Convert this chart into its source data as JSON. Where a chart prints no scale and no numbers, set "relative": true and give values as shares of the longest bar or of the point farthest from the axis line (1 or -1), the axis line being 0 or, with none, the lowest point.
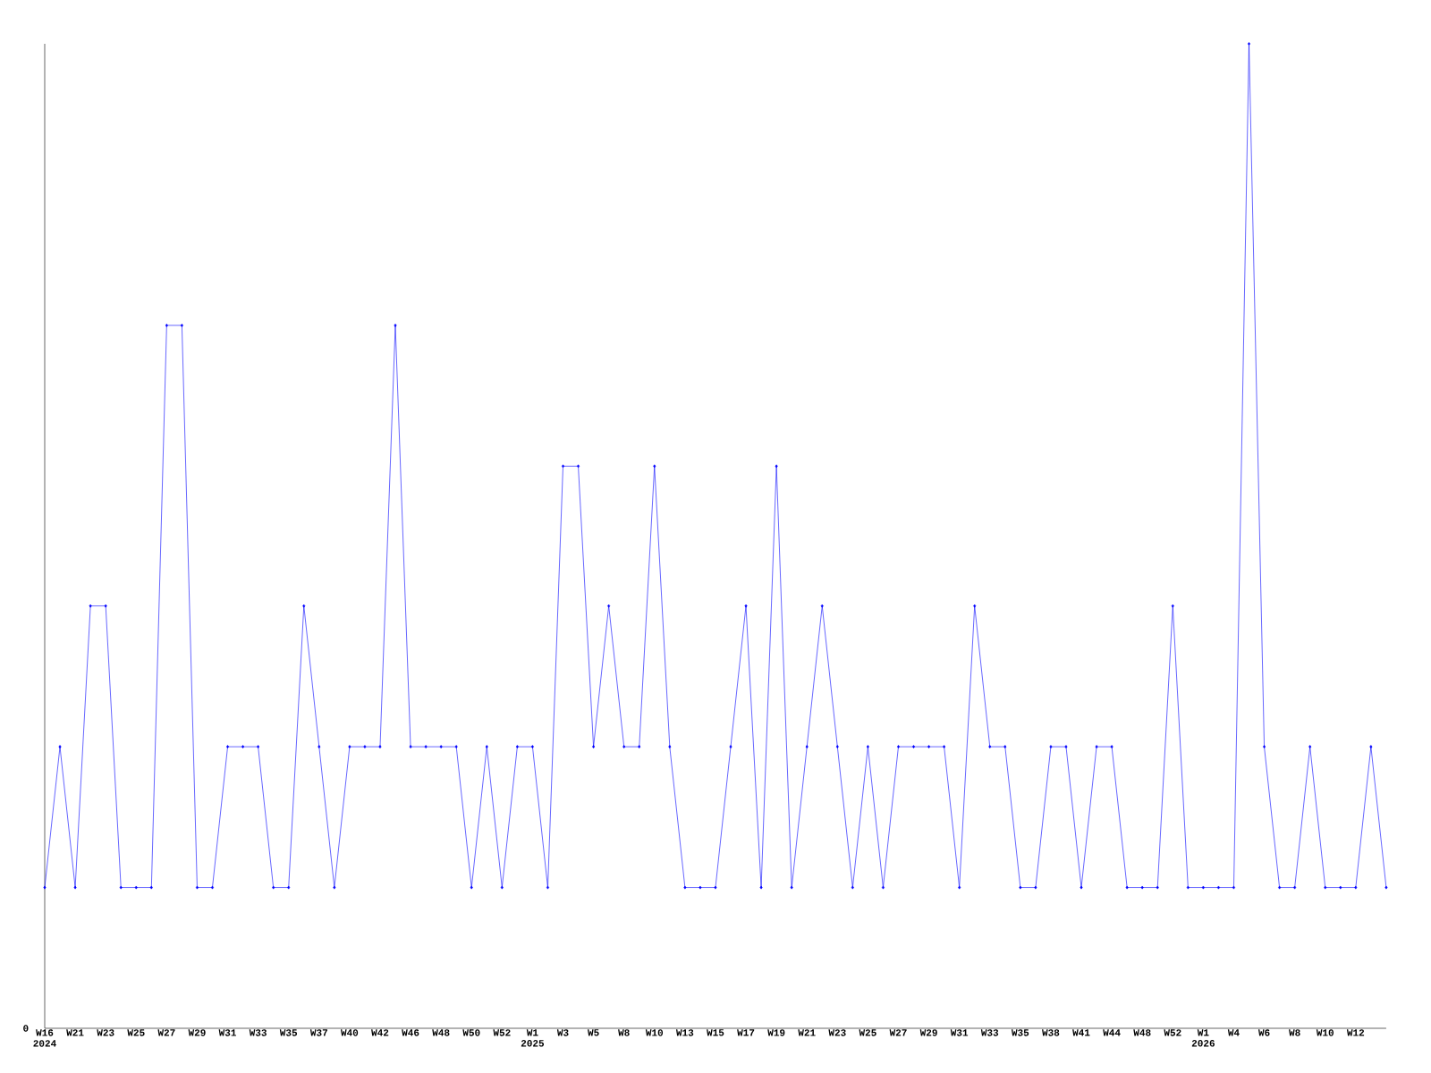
{
  "chart_data": {
    "type": "line",
    "relative": true,
    "color": "#0000ff",
    "marker": "diamond",
    "categories": [
      "W16 2024",
      null,
      "W21",
      null,
      "W23",
      null,
      "W25",
      null,
      "W27",
      null,
      "W29",
      null,
      "W31",
      null,
      "W33",
      null,
      "W35",
      null,
      "W37",
      null,
      "W40",
      null,
      "W42",
      null,
      "W46",
      null,
      "W48",
      null,
      "W50",
      null,
      "W52",
      null,
      "W1 2025",
      null,
      "W3",
      null,
      "W5",
      null,
      "W8",
      null,
      "W10",
      null,
      "W13",
      null,
      "W15",
      null,
      "W17",
      null,
      "W19",
      null,
      "W21",
      null,
      "W23",
      null,
      "W25",
      null,
      "W27",
      null,
      "W29",
      null,
      "W31",
      null,
      "W33",
      null,
      "W35",
      null,
      "W38",
      null,
      "W41",
      null,
      "W44",
      null,
      "W48",
      null,
      "W52",
      null,
      "W1 2026",
      null,
      "W4",
      null,
      "W6",
      null,
      "W8",
      null,
      "W10",
      null,
      "W12",
      null,
      null
    ],
    "values": [
      0.143,
      0.286,
      0.143,
      0.429,
      0.429,
      0.143,
      0.143,
      0.143,
      0.714,
      0.714,
      0.143,
      0.143,
      0.286,
      0.286,
      0.286,
      0.143,
      0.143,
      0.429,
      0.286,
      0.143,
      0.286,
      0.286,
      0.286,
      0.714,
      0.286,
      0.286,
      0.286,
      0.286,
      0.143,
      0.286,
      0.143,
      0.286,
      0.286,
      0.143,
      0.571,
      0.571,
      0.286,
      0.429,
      0.286,
      0.286,
      0.571,
      0.286,
      0.143,
      0.143,
      0.143,
      0.286,
      0.429,
      0.143,
      0.571,
      0.143,
      0.286,
      0.429,
      0.286,
      0.143,
      0.286,
      0.143,
      0.286,
      0.286,
      0.286,
      0.286,
      0.143,
      0.429,
      0.286,
      0.286,
      0.143,
      0.143,
      0.286,
      0.286,
      0.143,
      0.286,
      0.286,
      0.143,
      0.143,
      0.143,
      0.429,
      0.143,
      0.143,
      0.143,
      0.143,
      1,
      0.286,
      0.143,
      0.143,
      0.286,
      0.143,
      0.143,
      0.143,
      0.286,
      0.143
    ],
    "annotations": [
      "0"
    ]
  }
}
